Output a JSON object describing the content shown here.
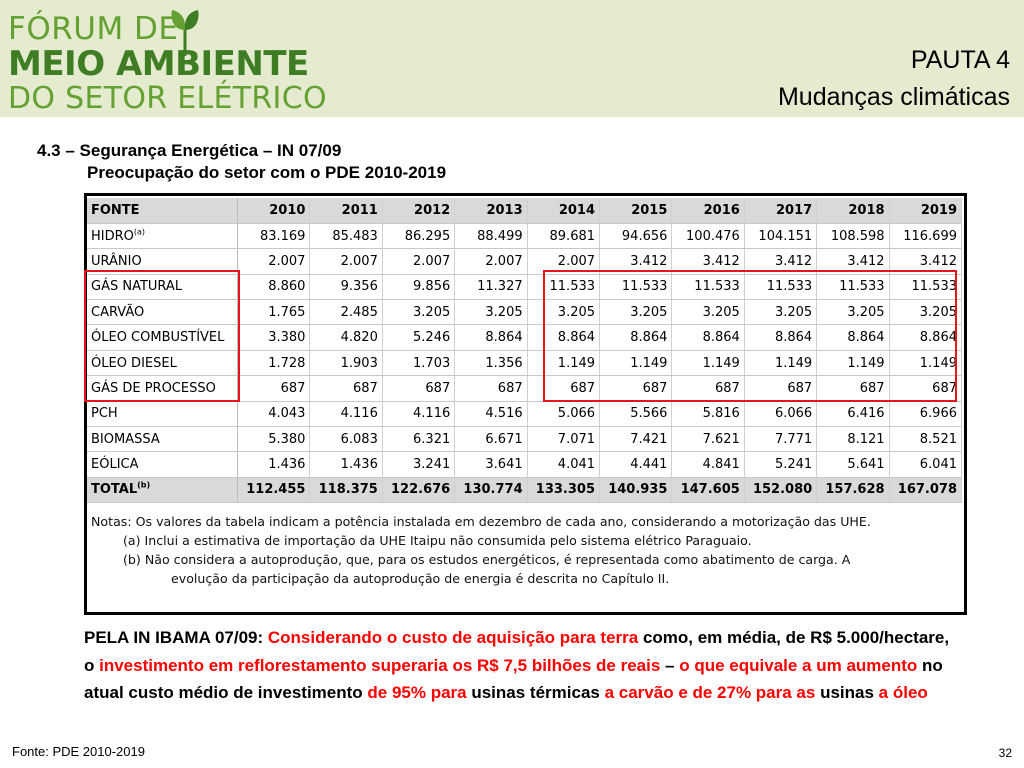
{
  "logo": {
    "line1": "FÓRUM DE",
    "line2": "MEIO AMBIENTE",
    "line3": "DO SETOR ELÉTRICO",
    "icon": "leaf-sprout-icon"
  },
  "header": {
    "title1": "PAUTA 4",
    "title2": "Mudanças climáticas"
  },
  "subtitle": {
    "line1": "4.3 – Segurança Energética – IN 07/09",
    "line2": "Preocupação do setor com o PDE 2010-2019"
  },
  "table": {
    "header_label": "FONTE",
    "years": [
      "2010",
      "2011",
      "2012",
      "2013",
      "2014",
      "2015",
      "2016",
      "2017",
      "2018",
      "2019"
    ],
    "rows": [
      {
        "label": "HIDRO",
        "sup": "(a)",
        "values": [
          "83.169",
          "85.483",
          "86.295",
          "88.499",
          "89.681",
          "94.656",
          "100.476",
          "104.151",
          "108.598",
          "116.699"
        ]
      },
      {
        "label": "URÂNIO",
        "sup": "",
        "values": [
          "2.007",
          "2.007",
          "2.007",
          "2.007",
          "2.007",
          "3.412",
          "3.412",
          "3.412",
          "3.412",
          "3.412"
        ]
      },
      {
        "label": "GÁS NATURAL",
        "sup": "",
        "values": [
          "8.860",
          "9.356",
          "9.856",
          "11.327",
          "11.533",
          "11.533",
          "11.533",
          "11.533",
          "11.533",
          "11.533"
        ]
      },
      {
        "label": "CARVÃO",
        "sup": "",
        "values": [
          "1.765",
          "2.485",
          "3.205",
          "3.205",
          "3.205",
          "3.205",
          "3.205",
          "3.205",
          "3.205",
          "3.205"
        ]
      },
      {
        "label": "ÓLEO COMBUSTÍVEL",
        "sup": "",
        "values": [
          "3.380",
          "4.820",
          "5.246",
          "8.864",
          "8.864",
          "8.864",
          "8.864",
          "8.864",
          "8.864",
          "8.864"
        ]
      },
      {
        "label": "ÓLEO DIESEL",
        "sup": "",
        "values": [
          "1.728",
          "1.903",
          "1.703",
          "1.356",
          "1.149",
          "1.149",
          "1.149",
          "1.149",
          "1.149",
          "1.149"
        ]
      },
      {
        "label": "GÁS DE PROCESSO",
        "sup": "",
        "values": [
          "687",
          "687",
          "687",
          "687",
          "687",
          "687",
          "687",
          "687",
          "687",
          "687"
        ]
      },
      {
        "label": "PCH",
        "sup": "",
        "values": [
          "4.043",
          "4.116",
          "4.116",
          "4.516",
          "5.066",
          "5.566",
          "5.816",
          "6.066",
          "6.416",
          "6.966"
        ]
      },
      {
        "label": "BIOMASSA",
        "sup": "",
        "values": [
          "5.380",
          "6.083",
          "6.321",
          "6.671",
          "7.071",
          "7.421",
          "7.621",
          "7.771",
          "8.121",
          "8.521"
        ]
      },
      {
        "label": "EÓLICA",
        "sup": "",
        "values": [
          "1.436",
          "1.436",
          "3.241",
          "3.641",
          "4.041",
          "4.441",
          "4.841",
          "5.241",
          "5.641",
          "6.041"
        ]
      }
    ],
    "total": {
      "label": "TOTAL",
      "sup": "(b)",
      "values": [
        "112.455",
        "118.375",
        "122.676",
        "130.774",
        "133.305",
        "140.935",
        "147.605",
        "152.080",
        "157.628",
        "167.078"
      ]
    },
    "highlight_color": "#e8141b"
  },
  "notes": {
    "intro": "Notas: Os valores da tabela indicam a potência instalada em dezembro de cada ano, considerando a motorização das UHE.",
    "a": "(a)  Inclui a estimativa de importação da UHE Itaipu não consumida pelo sistema elétrico Paraguaio.",
    "b1": "(b)  Não considera a autoprodução, que, para os estudos energéticos, é representada como abatimento de carga. A",
    "b2": "evolução da participação da autoprodução de energia é descrita no Capítulo II."
  },
  "paragraph": {
    "s1": "PELA IN IBAMA 07/09: ",
    "s2": "Considerando o custo de aquisição para terra",
    "s3": " como, em média, de R$ 5.000/hectare, o ",
    "s4": "investimento em reflorestamento superaria os R$ 7,5 bilhões de reais",
    "s5": " – ",
    "s6": "o que equivale a um aumento",
    "s7": " no atual custo médio de investimento ",
    "s8": "de 95% para",
    "s9": " usinas térmicas ",
    "s10": "a carvão e de 27% para as",
    "s11": " usinas ",
    "s12": "a óleo"
  },
  "footer": {
    "source": "Fonte: PDE 2010-2019",
    "page": "32"
  },
  "colors": {
    "header_bg": "#e4ebce",
    "logo_green_dark": "#3e7d23",
    "logo_green_light": "#64a032",
    "emphasis_red": "#ff0000"
  }
}
